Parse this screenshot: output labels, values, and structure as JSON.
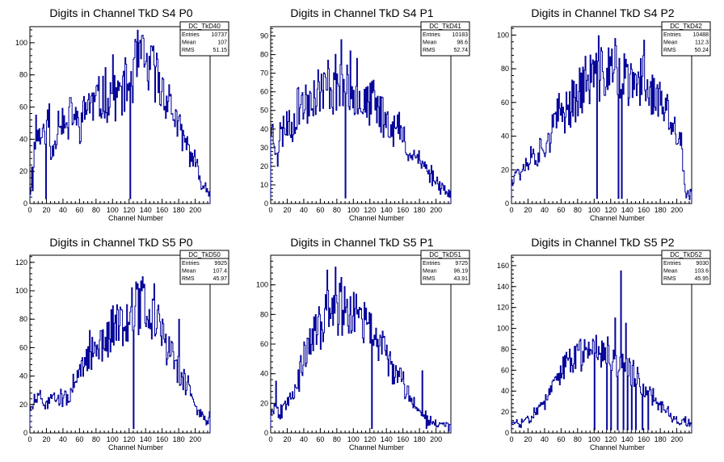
{
  "chart_data": [
    {
      "type": "bar",
      "title": "Digits in Channel TkD S4 P0",
      "xlabel": "Channel Number",
      "stats": {
        "name": "DC_TkD40",
        "entries_label": "Entries",
        "entries": "10737",
        "mean_label": "Mean",
        "mean": "107",
        "rms_label": "RMS",
        "rms": "51.15"
      },
      "xlim": [
        0,
        218
      ],
      "ylim": [
        0,
        110
      ],
      "xticks": [
        0,
        20,
        40,
        60,
        80,
        100,
        120,
        140,
        160,
        180,
        200
      ],
      "yticks": [
        0,
        20,
        40,
        60,
        80,
        100
      ],
      "anchors": [
        [
          0,
          8
        ],
        [
          5,
          35
        ],
        [
          10,
          45
        ],
        [
          15,
          40
        ],
        [
          20,
          55
        ],
        [
          25,
          30
        ],
        [
          30,
          40
        ],
        [
          35,
          55
        ],
        [
          40,
          50
        ],
        [
          45,
          45
        ],
        [
          50,
          60
        ],
        [
          55,
          50
        ],
        [
          60,
          50
        ],
        [
          65,
          55
        ],
        [
          70,
          65
        ],
        [
          75,
          60
        ],
        [
          80,
          65
        ],
        [
          85,
          62
        ],
        [
          90,
          70
        ],
        [
          95,
          65
        ],
        [
          100,
          75
        ],
        [
          105,
          65
        ],
        [
          110,
          70
        ],
        [
          115,
          72
        ],
        [
          120,
          75
        ],
        [
          125,
          80
        ],
        [
          130,
          90
        ],
        [
          135,
          88
        ],
        [
          140,
          85
        ],
        [
          145,
          80
        ],
        [
          150,
          85
        ],
        [
          155,
          75
        ],
        [
          160,
          70
        ],
        [
          165,
          68
        ],
        [
          170,
          60
        ],
        [
          175,
          55
        ],
        [
          180,
          45
        ],
        [
          185,
          40
        ],
        [
          190,
          35
        ],
        [
          195,
          30
        ],
        [
          200,
          25
        ],
        [
          205,
          15
        ],
        [
          210,
          12
        ],
        [
          215,
          8
        ]
      ],
      "spikes": [
        [
          3,
          8
        ],
        [
          7,
          55
        ],
        [
          19,
          3
        ],
        [
          23,
          62
        ],
        [
          121,
          3
        ],
        [
          132,
          100
        ],
        [
          148,
          95
        ],
        [
          152,
          85
        ]
      ],
      "seed": 11
    },
    {
      "type": "bar",
      "title": "Digits in Channel TkD S4 P1",
      "xlabel": "Channel Number",
      "stats": {
        "name": "DC_TkD41",
        "entries_label": "Entries",
        "entries": "10183",
        "mean_label": "Mean",
        "mean": "98.6",
        "rms_label": "RMS",
        "rms": "52.74"
      },
      "xlim": [
        0,
        218
      ],
      "ylim": [
        0,
        95
      ],
      "xticks": [
        0,
        20,
        40,
        60,
        80,
        100,
        120,
        140,
        160,
        180,
        200
      ],
      "yticks": [
        0,
        10,
        20,
        30,
        40,
        50,
        60,
        70,
        80,
        90
      ],
      "anchors": [
        [
          0,
          42
        ],
        [
          5,
          30
        ],
        [
          10,
          35
        ],
        [
          15,
          40
        ],
        [
          20,
          45
        ],
        [
          25,
          40
        ],
        [
          30,
          50
        ],
        [
          35,
          55
        ],
        [
          40,
          52
        ],
        [
          45,
          55
        ],
        [
          50,
          60
        ],
        [
          55,
          58
        ],
        [
          60,
          62
        ],
        [
          65,
          60
        ],
        [
          70,
          65
        ],
        [
          75,
          62
        ],
        [
          80,
          68
        ],
        [
          85,
          62
        ],
        [
          90,
          58
        ],
        [
          95,
          60
        ],
        [
          100,
          62
        ],
        [
          105,
          58
        ],
        [
          110,
          55
        ],
        [
          115,
          55
        ],
        [
          120,
          52
        ],
        [
          125,
          55
        ],
        [
          130,
          50
        ],
        [
          135,
          48
        ],
        [
          140,
          45
        ],
        [
          145,
          42
        ],
        [
          150,
          40
        ],
        [
          155,
          40
        ],
        [
          160,
          35
        ],
        [
          165,
          30
        ],
        [
          170,
          25
        ],
        [
          175,
          28
        ],
        [
          180,
          22
        ],
        [
          185,
          20
        ],
        [
          190,
          18
        ],
        [
          195,
          15
        ],
        [
          200,
          12
        ],
        [
          205,
          10
        ],
        [
          210,
          8
        ],
        [
          215,
          5
        ]
      ],
      "spikes": [
        [
          8,
          20
        ],
        [
          85,
          88
        ],
        [
          90,
          3
        ],
        [
          96,
          82
        ],
        [
          104,
          78
        ]
      ],
      "seed": 23
    },
    {
      "type": "bar",
      "title": "Digits in Channel TkD S4 P2",
      "xlabel": "Channel Number",
      "stats": {
        "name": "DC_TkD42",
        "entries_label": "Entries",
        "entries": "10488",
        "mean_label": "Mean",
        "mean": "112.3",
        "rms_label": "RMS",
        "rms": "50.24"
      },
      "xlim": [
        0,
        218
      ],
      "ylim": [
        0,
        105
      ],
      "xticks": [
        0,
        20,
        40,
        60,
        80,
        100,
        120,
        140,
        160,
        180,
        200
      ],
      "yticks": [
        0,
        20,
        40,
        60,
        80,
        100
      ],
      "anchors": [
        [
          0,
          15
        ],
        [
          5,
          20
        ],
        [
          10,
          18
        ],
        [
          15,
          22
        ],
        [
          20,
          25
        ],
        [
          25,
          30
        ],
        [
          30,
          28
        ],
        [
          35,
          32
        ],
        [
          40,
          35
        ],
        [
          45,
          40
        ],
        [
          50,
          45
        ],
        [
          55,
          50
        ],
        [
          60,
          55
        ],
        [
          65,
          55
        ],
        [
          70,
          60
        ],
        [
          75,
          62
        ],
        [
          80,
          65
        ],
        [
          85,
          70
        ],
        [
          90,
          72
        ],
        [
          95,
          75
        ],
        [
          100,
          78
        ],
        [
          105,
          80
        ],
        [
          110,
          75
        ],
        [
          115,
          78
        ],
        [
          120,
          80
        ],
        [
          125,
          82
        ],
        [
          130,
          78
        ],
        [
          135,
          75
        ],
        [
          140,
          72
        ],
        [
          145,
          70
        ],
        [
          150,
          68
        ],
        [
          155,
          72
        ],
        [
          160,
          75
        ],
        [
          165,
          70
        ],
        [
          170,
          65
        ],
        [
          175,
          62
        ],
        [
          180,
          60
        ],
        [
          185,
          55
        ],
        [
          190,
          50
        ],
        [
          195,
          45
        ],
        [
          200,
          40
        ],
        [
          205,
          35
        ],
        [
          210,
          5
        ]
      ],
      "spikes": [
        [
          103,
          3
        ],
        [
          129,
          3
        ],
        [
          133,
          3
        ],
        [
          125,
          98
        ],
        [
          160,
          97
        ],
        [
          205,
          42
        ]
      ],
      "seed": 37
    },
    {
      "type": "bar",
      "title": "Digits in Channel TkD S5 P0",
      "xlabel": "Channel Number",
      "stats": {
        "name": "DC_TkD50",
        "entries_label": "Entries",
        "entries": "9925",
        "mean_label": "Mean",
        "mean": "107.4",
        "rms_label": "RMS",
        "rms": "45.97"
      },
      "xlim": [
        0,
        218
      ],
      "ylim": [
        0,
        125
      ],
      "xticks": [
        0,
        20,
        40,
        60,
        80,
        100,
        120,
        140,
        160,
        180,
        200
      ],
      "yticks": [
        0,
        20,
        40,
        60,
        80,
        100,
        120
      ],
      "anchors": [
        [
          0,
          15
        ],
        [
          5,
          22
        ],
        [
          10,
          25
        ],
        [
          15,
          20
        ],
        [
          20,
          22
        ],
        [
          25,
          25
        ],
        [
          30,
          28
        ],
        [
          35,
          25
        ],
        [
          40,
          22
        ],
        [
          45,
          28
        ],
        [
          50,
          30
        ],
        [
          55,
          35
        ],
        [
          60,
          40
        ],
        [
          65,
          45
        ],
        [
          70,
          55
        ],
        [
          75,
          60
        ],
        [
          80,
          58
        ],
        [
          85,
          62
        ],
        [
          90,
          60
        ],
        [
          95,
          68
        ],
        [
          100,
          75
        ],
        [
          105,
          80
        ],
        [
          110,
          78
        ],
        [
          115,
          82
        ],
        [
          120,
          85
        ],
        [
          125,
          90
        ],
        [
          130,
          85
        ],
        [
          135,
          95
        ],
        [
          140,
          85
        ],
        [
          145,
          80
        ],
        [
          150,
          78
        ],
        [
          155,
          75
        ],
        [
          160,
          68
        ],
        [
          165,
          62
        ],
        [
          170,
          55
        ],
        [
          175,
          50
        ],
        [
          180,
          42
        ],
        [
          185,
          38
        ],
        [
          190,
          32
        ],
        [
          195,
          28
        ],
        [
          200,
          20
        ],
        [
          205,
          15
        ],
        [
          210,
          10
        ],
        [
          215,
          8
        ]
      ],
      "spikes": [
        [
          125,
          3
        ],
        [
          130,
          105
        ],
        [
          135,
          100
        ],
        [
          150,
          105
        ],
        [
          155,
          90
        ],
        [
          180,
          80
        ],
        [
          217,
          15
        ]
      ],
      "seed": 51
    },
    {
      "type": "bar",
      "title": "Digits in Channel TkD S5 P1",
      "xlabel": "Channel Number",
      "stats": {
        "name": "DC_TkD51",
        "entries_label": "Entries",
        "entries": "9725",
        "mean_label": "Mean",
        "mean": "96.19",
        "rms_label": "RMS",
        "rms": "43.91"
      },
      "xlim": [
        0,
        218
      ],
      "ylim": [
        0,
        120
      ],
      "xticks": [
        0,
        20,
        40,
        60,
        80,
        100,
        120,
        140,
        160,
        180,
        200
      ],
      "yticks": [
        0,
        20,
        40,
        60,
        80,
        100
      ],
      "anchors": [
        [
          0,
          15
        ],
        [
          5,
          20
        ],
        [
          10,
          12
        ],
        [
          15,
          18
        ],
        [
          20,
          25
        ],
        [
          25,
          28
        ],
        [
          30,
          32
        ],
        [
          35,
          40
        ],
        [
          40,
          50
        ],
        [
          45,
          55
        ],
        [
          50,
          65
        ],
        [
          55,
          68
        ],
        [
          60,
          72
        ],
        [
          65,
          78
        ],
        [
          70,
          82
        ],
        [
          75,
          88
        ],
        [
          80,
          85
        ],
        [
          85,
          80
        ],
        [
          90,
          82
        ],
        [
          95,
          78
        ],
        [
          100,
          80
        ],
        [
          105,
          78
        ],
        [
          110,
          75
        ],
        [
          115,
          72
        ],
        [
          120,
          70
        ],
        [
          125,
          65
        ],
        [
          130,
          62
        ],
        [
          135,
          58
        ],
        [
          140,
          52
        ],
        [
          145,
          48
        ],
        [
          150,
          42
        ],
        [
          155,
          38
        ],
        [
          160,
          32
        ],
        [
          165,
          28
        ],
        [
          170,
          22
        ],
        [
          175,
          20
        ],
        [
          180,
          15
        ],
        [
          185,
          12
        ],
        [
          190,
          10
        ],
        [
          195,
          8
        ],
        [
          200,
          8
        ],
        [
          205,
          5
        ],
        [
          210,
          5
        ],
        [
          215,
          4
        ]
      ],
      "spikes": [
        [
          6,
          35
        ],
        [
          68,
          110
        ],
        [
          78,
          112
        ],
        [
          85,
          105
        ],
        [
          100,
          95
        ],
        [
          122,
          3
        ],
        [
          183,
          42
        ],
        [
          188,
          3
        ]
      ],
      "seed": 67
    },
    {
      "type": "bar",
      "title": "Digits in Channel TkD S5 P2",
      "xlabel": "Channel Number",
      "stats": {
        "name": "DC_TkD52",
        "entries_label": "Entries",
        "entries": "9030",
        "mean_label": "Mean",
        "mean": "103.6",
        "rms_label": "RMS",
        "rms": "45.95"
      },
      "xlim": [
        0,
        218
      ],
      "ylim": [
        0,
        170
      ],
      "xticks": [
        0,
        20,
        40,
        60,
        80,
        100,
        120,
        140,
        160,
        180,
        200
      ],
      "yticks": [
        0,
        20,
        40,
        60,
        80,
        100,
        120,
        140,
        160
      ],
      "anchors": [
        [
          0,
          8
        ],
        [
          5,
          10
        ],
        [
          10,
          8
        ],
        [
          15,
          12
        ],
        [
          20,
          15
        ],
        [
          25,
          18
        ],
        [
          30,
          22
        ],
        [
          35,
          25
        ],
        [
          40,
          30
        ],
        [
          45,
          35
        ],
        [
          50,
          45
        ],
        [
          55,
          52
        ],
        [
          60,
          58
        ],
        [
          65,
          62
        ],
        [
          70,
          68
        ],
        [
          75,
          72
        ],
        [
          80,
          75
        ],
        [
          85,
          78
        ],
        [
          90,
          80
        ],
        [
          95,
          82
        ],
        [
          100,
          85
        ],
        [
          105,
          82
        ],
        [
          110,
          80
        ],
        [
          115,
          78
        ],
        [
          120,
          75
        ],
        [
          125,
          72
        ],
        [
          130,
          70
        ],
        [
          135,
          68
        ],
        [
          140,
          65
        ],
        [
          145,
          60
        ],
        [
          150,
          55
        ],
        [
          155,
          50
        ],
        [
          160,
          45
        ],
        [
          165,
          40
        ],
        [
          170,
          35
        ],
        [
          175,
          30
        ],
        [
          180,
          25
        ],
        [
          185,
          22
        ],
        [
          190,
          18
        ],
        [
          195,
          15
        ],
        [
          200,
          12
        ],
        [
          205,
          10
        ],
        [
          210,
          12
        ],
        [
          215,
          8
        ]
      ],
      "spikes": [
        [
          100,
          3
        ],
        [
          115,
          3
        ],
        [
          120,
          3
        ],
        [
          125,
          110
        ],
        [
          128,
          3
        ],
        [
          132,
          155
        ],
        [
          135,
          3
        ],
        [
          138,
          105
        ],
        [
          140,
          3
        ],
        [
          145,
          3
        ],
        [
          150,
          3
        ],
        [
          158,
          3
        ],
        [
          165,
          3
        ]
      ],
      "seed": 83
    }
  ]
}
